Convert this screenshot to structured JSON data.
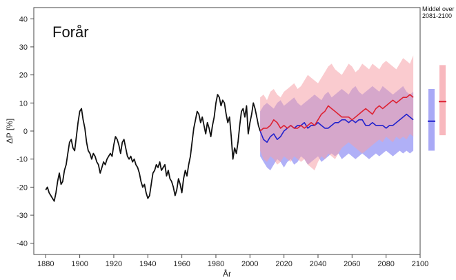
{
  "chart_data": {
    "type": "line",
    "title": "Forår",
    "xlabel": "År",
    "ylabel": "ΔP [%]",
    "xlim": [
      1873,
      2100
    ],
    "ylim": [
      -44,
      44
    ],
    "x_ticks": [
      1880,
      1900,
      1920,
      1940,
      1960,
      1980,
      2000,
      2020,
      2040,
      2060,
      2080,
      2100
    ],
    "y_ticks": [
      40,
      30,
      20,
      10,
      0,
      -10,
      -20,
      -30,
      -40
    ],
    "grid": false,
    "side_label": "Middel over 2081-2100",
    "colors": {
      "observed": "#111111",
      "blue_line": "#2222cc",
      "red_line": "#dd2233",
      "blue_band": "#6f6ff0",
      "red_band": "#f5a0a8"
    },
    "series": [
      {
        "key": "observed",
        "x": [
          1880,
          1881,
          1882,
          1883,
          1884,
          1885,
          1886,
          1887,
          1888,
          1889,
          1890,
          1891,
          1892,
          1893,
          1894,
          1895,
          1896,
          1897,
          1898,
          1899,
          1900,
          1901,
          1902,
          1903,
          1904,
          1905,
          1906,
          1907,
          1908,
          1909,
          1910,
          1911,
          1912,
          1913,
          1914,
          1915,
          1916,
          1917,
          1918,
          1919,
          1920,
          1921,
          1922,
          1923,
          1924,
          1925,
          1926,
          1927,
          1928,
          1929,
          1930,
          1931,
          1932,
          1933,
          1934,
          1935,
          1936,
          1937,
          1938,
          1939,
          1940,
          1941,
          1942,
          1943,
          1944,
          1945,
          1946,
          1947,
          1948,
          1949,
          1950,
          1951,
          1952,
          1953,
          1954,
          1955,
          1956,
          1957,
          1958,
          1959,
          1960,
          1961,
          1962,
          1963,
          1964,
          1965,
          1966,
          1967,
          1968,
          1969,
          1970,
          1971,
          1972,
          1973,
          1974,
          1975,
          1976,
          1977,
          1978,
          1979,
          1980,
          1981,
          1982,
          1983,
          1984,
          1985,
          1986,
          1987,
          1988,
          1989,
          1990,
          1991,
          1992,
          1993,
          1994,
          1995,
          1996,
          1997,
          1998,
          1999,
          2000,
          2001,
          2002,
          2003,
          2004,
          2005,
          2006
        ],
        "values": [
          -21,
          -20,
          -22,
          -23,
          -24,
          -25,
          -22,
          -18,
          -15,
          -19,
          -18,
          -14,
          -12,
          -8,
          -4,
          -3,
          -6,
          -7,
          -2,
          3,
          7,
          8,
          4,
          1,
          -4,
          -7,
          -8,
          -10,
          -8,
          -9,
          -11,
          -12,
          -15,
          -13,
          -11,
          -12,
          -10,
          -9,
          -8,
          -9,
          -5,
          -2,
          -3,
          -5,
          -8,
          -4,
          -3,
          -6,
          -9,
          -10,
          -9,
          -11,
          -10,
          -12,
          -13,
          -15,
          -18,
          -20,
          -19,
          -22,
          -24,
          -23,
          -19,
          -15,
          -14,
          -12,
          -13,
          -11,
          -14,
          -13,
          -12,
          -16,
          -14,
          -17,
          -18,
          -20,
          -23,
          -21,
          -17,
          -19,
          -22,
          -17,
          -14,
          -16,
          -12,
          -9,
          -4,
          1,
          4,
          7,
          6,
          3,
          5,
          2,
          -1,
          3,
          1,
          -2,
          2,
          5,
          10,
          13,
          12,
          9,
          11,
          10,
          6,
          3,
          5,
          -2,
          -10,
          -6,
          -8,
          -4,
          2,
          7,
          8,
          5,
          9,
          -1,
          3,
          6,
          10,
          8,
          5,
          2,
          0
        ]
      },
      {
        "key": "blue",
        "x": [
          2006,
          2008,
          2010,
          2012,
          2014,
          2016,
          2018,
          2020,
          2022,
          2024,
          2026,
          2028,
          2030,
          2032,
          2034,
          2036,
          2038,
          2040,
          2042,
          2044,
          2046,
          2048,
          2050,
          2052,
          2054,
          2056,
          2058,
          2060,
          2062,
          2064,
          2066,
          2068,
          2070,
          2072,
          2074,
          2076,
          2078,
          2080,
          2082,
          2084,
          2086,
          2088,
          2090,
          2092,
          2094,
          2096
        ],
        "values": [
          0,
          -3,
          -4,
          -2,
          -1,
          -3,
          -2,
          0,
          1,
          2,
          1,
          2,
          2,
          3,
          1,
          2,
          2,
          3,
          2,
          1,
          1,
          2,
          3,
          3,
          4,
          4,
          3,
          4,
          3,
          4,
          4,
          2,
          2,
          3,
          2,
          2,
          2,
          1,
          2,
          2,
          3,
          4,
          5,
          6,
          5,
          4
        ],
        "band_low": [
          -9,
          -11,
          -13,
          -14,
          -12,
          -10,
          -11,
          -13,
          -11,
          -10,
          -12,
          -11,
          -9,
          -10,
          -12,
          -11,
          -10,
          -9,
          -11,
          -10,
          -9,
          -8,
          -9,
          -8,
          -10,
          -9,
          -8,
          -9,
          -10,
          -9,
          -8,
          -9,
          -10,
          -9,
          -8,
          -9,
          -8,
          -7,
          -8,
          -9,
          -8,
          -7,
          -8,
          -7,
          -8,
          -7
        ],
        "band_high": [
          7,
          9,
          10,
          9,
          8,
          10,
          11,
          9,
          10,
          11,
          12,
          10,
          9,
          10,
          11,
          12,
          13,
          12,
          11,
          13,
          14,
          12,
          13,
          14,
          15,
          14,
          13,
          15,
          16,
          14,
          13,
          14,
          15,
          16,
          15,
          14,
          16,
          15,
          14,
          13,
          14,
          15,
          16,
          14,
          13,
          14
        ]
      },
      {
        "key": "red",
        "x": [
          2006,
          2008,
          2010,
          2012,
          2014,
          2016,
          2018,
          2020,
          2022,
          2024,
          2026,
          2028,
          2030,
          2032,
          2034,
          2036,
          2038,
          2040,
          2042,
          2044,
          2046,
          2048,
          2050,
          2052,
          2054,
          2056,
          2058,
          2060,
          2062,
          2064,
          2066,
          2068,
          2070,
          2072,
          2074,
          2076,
          2078,
          2080,
          2082,
          2084,
          2086,
          2088,
          2090,
          2092,
          2094,
          2096
        ],
        "values": [
          0,
          1,
          1,
          2,
          4,
          3,
          1,
          2,
          1,
          2,
          1,
          1,
          2,
          1,
          2,
          3,
          2,
          4,
          6,
          7,
          9,
          8,
          7,
          6,
          5,
          5,
          5,
          4,
          5,
          6,
          7,
          8,
          7,
          6,
          8,
          9,
          8,
          9,
          10,
          11,
          10,
          11,
          12,
          12,
          13,
          12
        ],
        "band_low": [
          -7,
          -10,
          -11,
          -9,
          -10,
          -12,
          -11,
          -9,
          -10,
          -11,
          -9,
          -10,
          -11,
          -10,
          -12,
          -13,
          -14,
          -11,
          -9,
          -10,
          -8,
          -9,
          -10,
          -8,
          -6,
          -5,
          -4,
          -5,
          -6,
          -7,
          -8,
          -7,
          -6,
          -5,
          -4,
          -3,
          -4,
          -2,
          -3,
          -4,
          -2,
          -3,
          -2,
          -3,
          -1,
          -2
        ],
        "band_high": [
          12,
          13,
          11,
          14,
          15,
          13,
          12,
          14,
          15,
          16,
          17,
          15,
          16,
          18,
          20,
          19,
          18,
          17,
          19,
          21,
          23,
          24,
          22,
          21,
          20,
          22,
          24,
          23,
          21,
          22,
          24,
          23,
          22,
          24,
          23,
          22,
          24,
          25,
          24,
          23,
          22,
          24,
          26,
          25,
          24,
          27
        ]
      }
    ],
    "period_means": [
      {
        "key": "blue",
        "mean": 3.5,
        "low": -7,
        "high": 15
      },
      {
        "key": "red",
        "mean": 10.5,
        "low": -1.5,
        "high": 23.5
      }
    ]
  }
}
